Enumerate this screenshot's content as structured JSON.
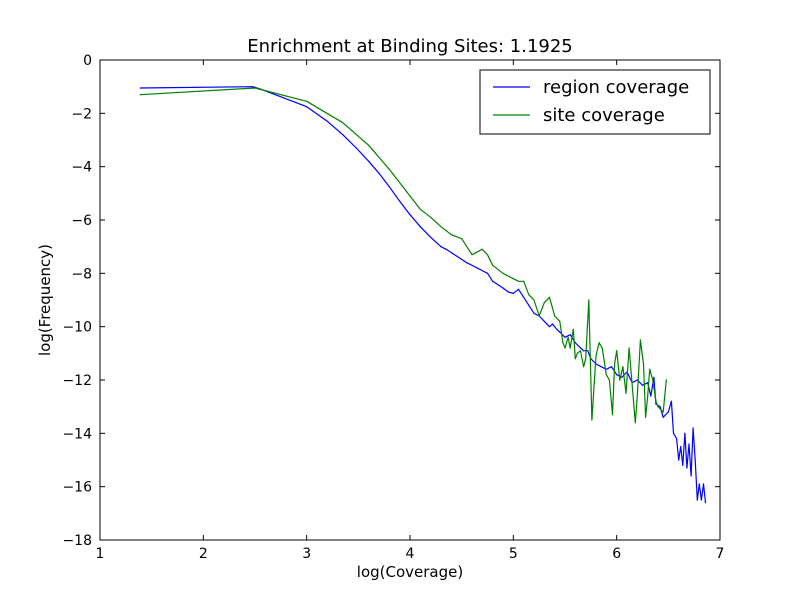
{
  "chart_data": {
    "type": "line",
    "title": "Enrichment at Binding Sites: 1.1925",
    "xlabel": "log(Coverage)",
    "ylabel": "log(Frequency)",
    "xlim": [
      1,
      7
    ],
    "ylim": [
      -18,
      0
    ],
    "xticks": [
      1,
      2,
      3,
      4,
      5,
      6,
      7
    ],
    "yticks": [
      0,
      -2,
      -4,
      -6,
      -8,
      -10,
      -12,
      -14,
      -16,
      -18
    ],
    "grid": false,
    "legend_position": "top-right",
    "series": [
      {
        "name": "region coverage",
        "color": "#0000ff",
        "x": [
          1.39,
          2.48,
          2.56,
          3.0,
          3.2,
          3.35,
          3.48,
          3.6,
          3.7,
          3.8,
          3.9,
          4.0,
          4.1,
          4.2,
          4.3,
          4.35,
          4.45,
          4.55,
          4.65,
          4.75,
          4.8,
          4.9,
          4.95,
          5.0,
          5.05,
          5.1,
          5.15,
          5.2,
          5.25,
          5.3,
          5.35,
          5.38,
          5.42,
          5.45,
          5.5,
          5.55,
          5.6,
          5.65,
          5.68,
          5.72,
          5.75,
          5.8,
          5.85,
          5.9,
          5.95,
          6.0,
          6.05,
          6.1,
          6.15,
          6.2,
          6.25,
          6.3,
          6.33,
          6.36,
          6.38,
          6.42,
          6.45,
          6.5,
          6.53,
          6.55,
          6.58,
          6.6,
          6.62,
          6.64,
          6.66,
          6.68,
          6.7,
          6.72,
          6.74,
          6.76,
          6.78,
          6.8,
          6.82,
          6.84,
          6.86
        ],
        "values": [
          -1.05,
          -1.0,
          -1.1,
          -1.75,
          -2.3,
          -2.8,
          -3.3,
          -3.8,
          -4.25,
          -4.75,
          -5.3,
          -5.8,
          -6.25,
          -6.65,
          -7.0,
          -7.1,
          -7.35,
          -7.6,
          -7.8,
          -8.0,
          -8.3,
          -8.55,
          -8.7,
          -8.75,
          -8.6,
          -8.9,
          -9.2,
          -9.5,
          -9.6,
          -9.8,
          -10.0,
          -9.9,
          -10.1,
          -10.2,
          -10.4,
          -10.3,
          -10.6,
          -10.8,
          -10.9,
          -10.9,
          -11.2,
          -11.4,
          -11.5,
          -11.6,
          -11.5,
          -11.8,
          -11.9,
          -11.7,
          -12.1,
          -12.0,
          -12.2,
          -12.1,
          -12.6,
          -11.9,
          -12.9,
          -13.0,
          -13.4,
          -13.2,
          -12.8,
          -14.0,
          -14.2,
          -15.0,
          -14.5,
          -15.2,
          -14.0,
          -15.3,
          -14.4,
          -15.6,
          -13.8,
          -15.0,
          -16.5,
          -15.9,
          -16.5,
          -15.9,
          -16.6
        ]
      },
      {
        "name": "site coverage",
        "color": "#008000",
        "x": [
          1.39,
          2.5,
          3.0,
          3.35,
          3.6,
          3.8,
          4.0,
          4.1,
          4.2,
          4.3,
          4.4,
          4.5,
          4.6,
          4.7,
          4.75,
          4.8,
          4.9,
          5.0,
          5.05,
          5.1,
          5.15,
          5.2,
          5.25,
          5.3,
          5.35,
          5.4,
          5.45,
          5.48,
          5.5,
          5.53,
          5.55,
          5.58,
          5.6,
          5.62,
          5.65,
          5.68,
          5.7,
          5.73,
          5.76,
          5.8,
          5.83,
          5.86,
          5.9,
          5.93,
          5.96,
          5.98,
          6.0,
          6.03,
          6.06,
          6.09,
          6.12,
          6.15,
          6.18,
          6.2,
          6.23,
          6.26,
          6.28,
          6.3,
          6.32,
          6.35,
          6.38,
          6.4,
          6.45,
          6.48
        ],
        "values": [
          -1.3,
          -1.05,
          -1.55,
          -2.35,
          -3.2,
          -4.1,
          -5.1,
          -5.6,
          -5.9,
          -6.25,
          -6.55,
          -6.7,
          -7.3,
          -7.1,
          -7.3,
          -7.7,
          -8.0,
          -8.2,
          -8.3,
          -8.3,
          -8.8,
          -9.0,
          -9.6,
          -9.1,
          -8.9,
          -9.6,
          -9.8,
          -10.6,
          -10.8,
          -10.4,
          -10.8,
          -10.1,
          -11.2,
          -11.0,
          -10.9,
          -11.5,
          -11.2,
          -9.0,
          -13.5,
          -11.1,
          -10.6,
          -10.8,
          -11.8,
          -12.0,
          -13.3,
          -11.4,
          -10.9,
          -12.0,
          -11.5,
          -12.5,
          -10.8,
          -12.2,
          -13.6,
          -12.6,
          -10.5,
          -11.4,
          -13.4,
          -12.6,
          -11.6,
          -12.0,
          -12.8,
          -13.0,
          -13.2,
          -12.0
        ]
      }
    ]
  }
}
